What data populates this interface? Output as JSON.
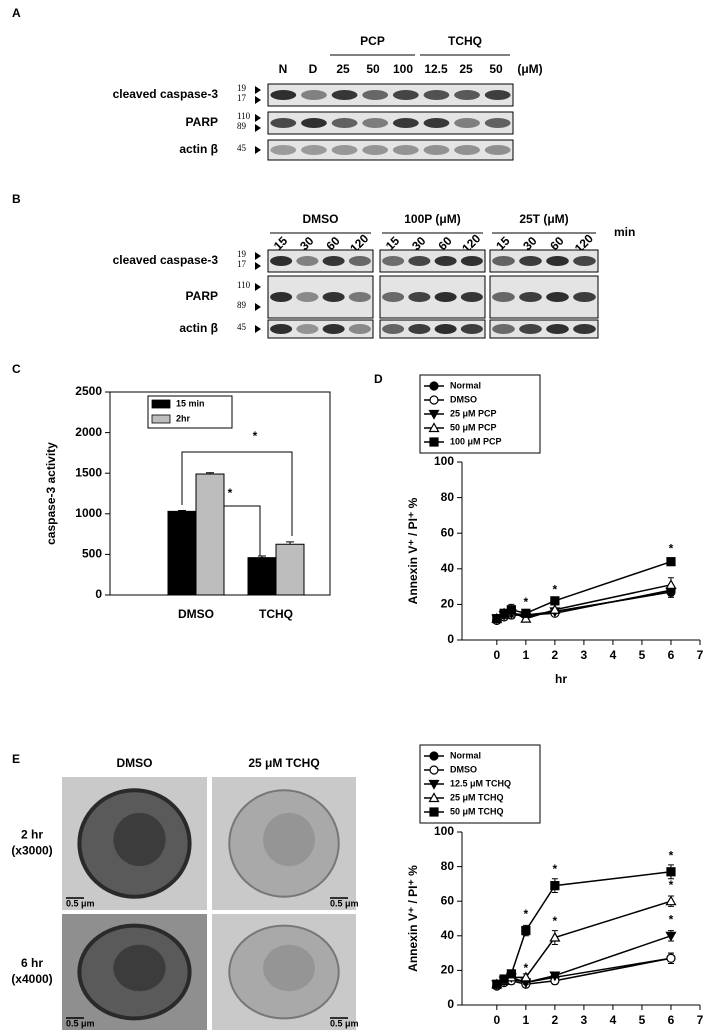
{
  "panel_labels": [
    "A",
    "B",
    "C",
    "D",
    "E"
  ],
  "blot_a": {
    "groups": [
      "PCP",
      "TCHQ"
    ],
    "lanes": [
      "N",
      "D",
      "25",
      "50",
      "100",
      "12.5",
      "25",
      "50"
    ],
    "unit": "(μM)",
    "rows": [
      {
        "label": "cleaved caspase-3",
        "markers": [
          "19",
          "17"
        ]
      },
      {
        "label": "PARP",
        "markers": [
          "110",
          "89"
        ]
      },
      {
        "label": "actin β",
        "markers": [
          "45"
        ]
      }
    ]
  },
  "blot_b": {
    "groups": [
      "DMSO",
      "100P (μM)",
      "25T (μM)"
    ],
    "lanes": [
      "15",
      "30",
      "60",
      "120"
    ],
    "unit": "min",
    "rows": [
      {
        "label": "cleaved caspase-3",
        "markers": [
          "19",
          "17"
        ]
      },
      {
        "label": "PARP",
        "markers": [
          "110",
          "89"
        ]
      },
      {
        "label": "actin β",
        "markers": [
          "45"
        ]
      }
    ]
  },
  "micrographs": {
    "columns": [
      "DMSO",
      "25 μM TCHQ"
    ],
    "rows": [
      {
        "label": "2 hr",
        "magnification": "(x3000)"
      },
      {
        "label": "6 hr",
        "magnification": "(x4000)"
      }
    ],
    "scale_bar": "0.5 μm"
  },
  "chart_data": [
    {
      "type": "bar",
      "ylabel": "caspase-3 activity",
      "categories": [
        "DMSO",
        "TCHQ"
      ],
      "series": [
        {
          "name": "15 min",
          "color": "#000000",
          "values": [
            1030,
            460
          ],
          "errors": [
            10,
            20
          ]
        },
        {
          "name": "2hr",
          "color": "#bdbdbd",
          "values": [
            1490,
            625
          ],
          "errors": [
            15,
            30
          ]
        }
      ],
      "ylim": [
        0,
        2500
      ],
      "yticks": [
        0,
        500,
        1000,
        1500,
        2000,
        2500
      ],
      "legend": "upper left",
      "annotations": [
        {
          "text": "*"
        },
        {
          "text": "*"
        }
      ]
    },
    {
      "type": "line",
      "xlabel": "hr",
      "ylabel": "Annexin V⁺ / PI⁺ %",
      "x": [
        0,
        0.25,
        0.5,
        1,
        2,
        6
      ],
      "series": [
        {
          "name": "Normal",
          "color": "#000000",
          "marker": "circle",
          "filled": true,
          "values": [
            11,
            13,
            15,
            14,
            16,
            27
          ],
          "errors": [
            1,
            1,
            2,
            1,
            1,
            3
          ]
        },
        {
          "name": "DMSO",
          "color": "#000000",
          "marker": "circle",
          "filled": false,
          "values": [
            11,
            13,
            14,
            14,
            15,
            28
          ],
          "errors": [
            1,
            1,
            2,
            1,
            1,
            3
          ]
        },
        {
          "name": "25 μM PCP",
          "color": "#000000",
          "marker": "triangle-down",
          "filled": true,
          "values": [
            12,
            14,
            15,
            13,
            16,
            27
          ],
          "errors": [
            1,
            2,
            2,
            1,
            1,
            3
          ]
        },
        {
          "name": "50 μM PCP",
          "color": "#000000",
          "marker": "triangle-up",
          "filled": false,
          "values": [
            12,
            15,
            16,
            12,
            17,
            31
          ],
          "errors": [
            1,
            2,
            3,
            1,
            1,
            4
          ]
        },
        {
          "name": "100 μM PCP",
          "color": "#000000",
          "marker": "square",
          "filled": true,
          "values": [
            12,
            15,
            17,
            15,
            22,
            44
          ],
          "errors": [
            1,
            2,
            3,
            1,
            2,
            2
          ]
        }
      ],
      "xlim": [
        -1.2,
        7
      ],
      "xticks": [
        0,
        1,
        2,
        3,
        4,
        5,
        6,
        7
      ],
      "ylim": [
        0,
        100
      ],
      "yticks": [
        0,
        20,
        40,
        60,
        80,
        100
      ],
      "legend": "top",
      "annotations": [
        {
          "text": "*",
          "x": 1,
          "y": 21
        },
        {
          "text": "*",
          "x": 2,
          "y": 28
        },
        {
          "text": "*",
          "x": 6,
          "y": 51
        }
      ]
    },
    {
      "type": "line",
      "xlabel": "hr",
      "ylabel": "Annexin V⁺ / PI⁺ %",
      "x": [
        0,
        0.25,
        0.5,
        1,
        2,
        6
      ],
      "series": [
        {
          "name": "Normal",
          "color": "#000000",
          "marker": "circle",
          "filled": true,
          "values": [
            11,
            13,
            15,
            13,
            16,
            27
          ],
          "errors": [
            1,
            1,
            2,
            1,
            1,
            3
          ]
        },
        {
          "name": "DMSO",
          "color": "#000000",
          "marker": "circle",
          "filled": false,
          "values": [
            11,
            13,
            14,
            12,
            14,
            27
          ],
          "errors": [
            1,
            1,
            2,
            1,
            2,
            3
          ]
        },
        {
          "name": "12.5 μM TCHQ",
          "color": "#000000",
          "marker": "triangle-down",
          "filled": true,
          "values": [
            12,
            14,
            16,
            13,
            17,
            40
          ],
          "errors": [
            1,
            2,
            2,
            1,
            1,
            3
          ]
        },
        {
          "name": "25 μM TCHQ",
          "color": "#000000",
          "marker": "triangle-up",
          "filled": false,
          "values": [
            12,
            14,
            16,
            16,
            39,
            60
          ],
          "errors": [
            1,
            2,
            2,
            2,
            4,
            3
          ]
        },
        {
          "name": "50 μM TCHQ",
          "color": "#000000",
          "marker": "square",
          "filled": true,
          "values": [
            12,
            15,
            18,
            43,
            69,
            77
          ],
          "errors": [
            1,
            2,
            2,
            3,
            4,
            4
          ]
        }
      ],
      "xlim": [
        -1.2,
        7
      ],
      "xticks": [
        0,
        1,
        2,
        3,
        4,
        5,
        6,
        7
      ],
      "ylim": [
        0,
        100
      ],
      "yticks": [
        0,
        20,
        40,
        60,
        80,
        100
      ],
      "legend": "top",
      "annotations": [
        {
          "text": "*",
          "x": 1,
          "y": 52
        },
        {
          "text": "*",
          "x": 1,
          "y": 21
        },
        {
          "text": "*",
          "x": 2,
          "y": 78
        },
        {
          "text": "*",
          "x": 2,
          "y": 48
        },
        {
          "text": "*",
          "x": 6,
          "y": 86
        },
        {
          "text": "*",
          "x": 6,
          "y": 69
        },
        {
          "text": "*",
          "x": 6,
          "y": 49
        }
      ]
    }
  ]
}
